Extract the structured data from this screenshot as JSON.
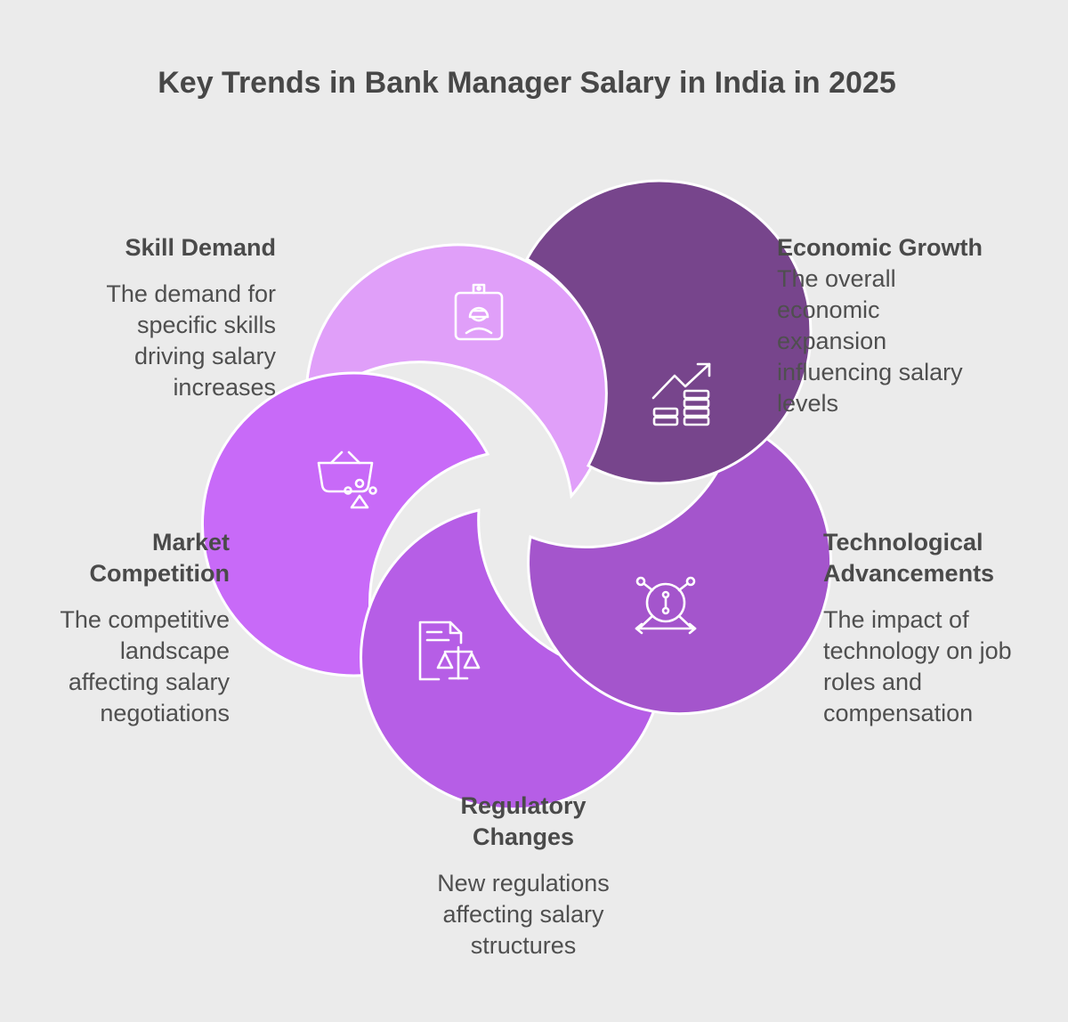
{
  "title": "Key Trends in Bank Manager Salary in India in 2025",
  "colors": {
    "background": "#ebebeb",
    "skill_demand": "#e09ff9",
    "economic_growth": "#77458c",
    "technological_advancements": "#a455cc",
    "regulatory_changes": "#b65ee6",
    "market_competition": "#c86af8"
  },
  "items": {
    "skill_demand": {
      "heading": "Skill Demand",
      "lines": [
        "The demand for",
        "specific skills",
        "driving salary",
        "increases"
      ],
      "icon": "job-badge-icon"
    },
    "economic_growth": {
      "heading": "Economic Growth",
      "lines": [
        "The overall",
        "economic",
        "expansion",
        "influencing salary",
        "levels"
      ],
      "icon": "growth-coins-icon"
    },
    "technological_advancements": {
      "heading_lines": [
        "Technological",
        "Advancements"
      ],
      "lines": [
        "The impact of",
        "technology on job",
        "roles and",
        "compensation"
      ],
      "icon": "network-hub-icon"
    },
    "regulatory_changes": {
      "heading_lines": [
        "Regulatory",
        "Changes"
      ],
      "lines": [
        "New regulations",
        "affecting salary",
        "structures"
      ],
      "icon": "document-scales-icon"
    },
    "market_competition": {
      "heading_lines": [
        "Market",
        "Competition"
      ],
      "lines": [
        "The competitive",
        "landscape",
        "affecting salary",
        "negotiations"
      ],
      "icon": "basket-competition-icon"
    }
  }
}
